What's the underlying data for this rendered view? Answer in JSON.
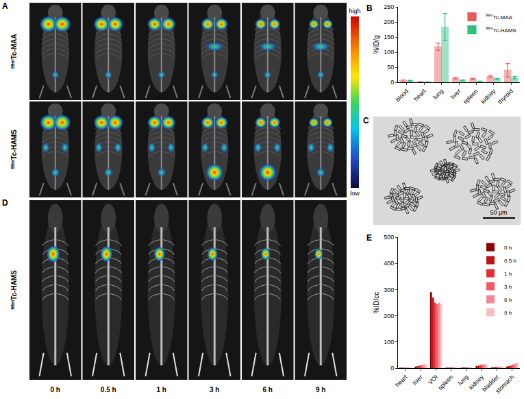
{
  "panels": {
    "A": {
      "label": "A",
      "rows": [
        "99mTc-MAA",
        "99mTc-HAMS"
      ]
    },
    "colorbar": {
      "high": "high",
      "low": "low"
    },
    "C": {
      "label": "C",
      "scale_bar": "50 µm"
    },
    "D": {
      "label": "D",
      "row": "99mTc-HAMS",
      "times": [
        "0 h",
        "0.5 h",
        "1 h",
        "3 h",
        "6 h",
        "9 h"
      ]
    }
  },
  "chart_data": [
    {
      "panel": "B",
      "type": "bar",
      "y_label": "%ID/g",
      "categories": [
        "blood",
        "heart",
        "lung",
        "liver",
        "spleen",
        "kidney",
        "thyroid"
      ],
      "series": [
        {
          "name": "99mTc-MAA",
          "color": "#e85a5a",
          "values": [
            6,
            1.5,
            118,
            14,
            11,
            19,
            40
          ],
          "errors": [
            2,
            0.5,
            12,
            3,
            2,
            4,
            22
          ]
        },
        {
          "name": "99mTc-HAMS",
          "color": "#2fbf7f",
          "values": [
            5,
            1,
            183,
            7,
            3,
            11,
            15
          ],
          "errors": [
            1.5,
            0.5,
            45,
            1.5,
            1,
            2,
            4
          ]
        }
      ],
      "ylim": [
        0,
        250
      ],
      "yticks": [
        0,
        50,
        100,
        150,
        200,
        250
      ],
      "grid": false,
      "legend": "top right"
    },
    {
      "panel": "E",
      "type": "bar",
      "y_label": "%ID/cc",
      "categories": [
        "heart",
        "liver",
        "VOI",
        "spleen",
        "lung",
        "kidney",
        "bladder",
        "stomach"
      ],
      "series": [
        {
          "name": "0 h",
          "color": "#8b0000",
          "values": [
            2,
            6,
            290,
            2,
            2,
            8,
            3,
            6
          ]
        },
        {
          "name": "0.5 h",
          "color": "#c0141b",
          "values": [
            2,
            8,
            270,
            2,
            3,
            10,
            4,
            8
          ]
        },
        {
          "name": "1 h",
          "color": "#e0303a",
          "values": [
            2,
            10,
            250,
            3,
            3,
            12,
            5,
            10
          ]
        },
        {
          "name": "3 h",
          "color": "#ef5a64",
          "values": [
            2,
            12,
            245,
            3,
            3,
            14,
            5,
            14
          ]
        },
        {
          "name": "6 h",
          "color": "#f48a91",
          "values": [
            2,
            14,
            250,
            3,
            3,
            15,
            6,
            18
          ]
        },
        {
          "name": "9 h",
          "color": "#f9bcc0",
          "values": [
            2,
            16,
            245,
            3,
            3,
            14,
            6,
            22
          ]
        }
      ],
      "ylim": [
        0,
        500
      ],
      "yticks": [
        0,
        100,
        200,
        300,
        400,
        500
      ],
      "grid": false,
      "legend": "top right"
    }
  ]
}
